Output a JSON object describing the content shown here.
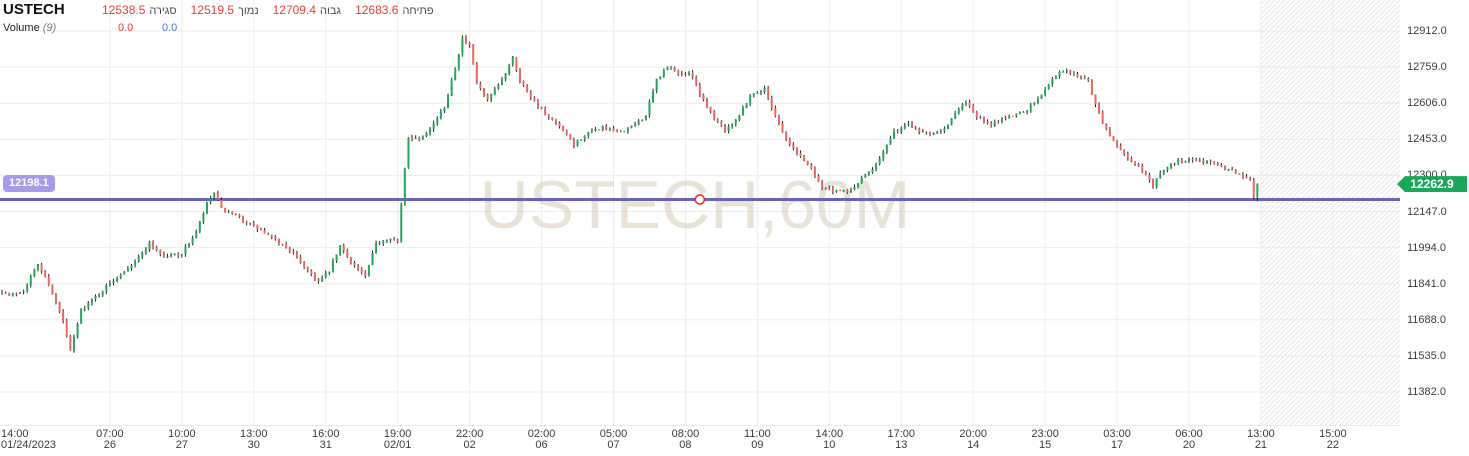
{
  "header": {
    "symbol": "USTECH",
    "fields": [
      {
        "label": "פתיחה",
        "value": "12683.6"
      },
      {
        "label": "גבוה",
        "value": "12709.4"
      },
      {
        "label": "נמוך",
        "value": "12519.5"
      },
      {
        "label": "סגירה",
        "value": "12538.5"
      }
    ],
    "volume": {
      "label": "Volume",
      "param": "(9)",
      "value_red": "0.0",
      "value_blue": "0.0"
    }
  },
  "chart_data": {
    "type": "candlestick",
    "title": "USTECH 60-minute candlestick chart",
    "watermark": "USTECH,60M",
    "colors": {
      "up": "#22a65a",
      "down": "#f0645f",
      "wick": "#1f1f1f",
      "grid": "#ececec",
      "hatch": "#e7e7e7",
      "price_line": "#6a62b4",
      "price_pill_bg": "#a79ae6",
      "last_tag_bg": "#1aa75a",
      "marker_ring": "#e23a2e",
      "watermark_color": "rgba(214,204,180,0.55)"
    },
    "y_axis": {
      "ticks": [
        12912.0,
        12759.0,
        12606.0,
        12453.0,
        12300.0,
        12147.0,
        11994.0,
        11841.0,
        11688.0,
        11535.0,
        11382.0
      ],
      "price_top": 13043.4,
      "price_bottom": 11242.2,
      "tick_step": 153.0
    },
    "x_axis": {
      "bars_total": 350,
      "future_start_bar": 350,
      "labels": [
        {
          "bar": 2,
          "time": "14:00",
          "date": "01/24/2023",
          "grid": false
        },
        {
          "bar": 30,
          "time": "07:00",
          "date": "26",
          "grid": true
        },
        {
          "bar": 50,
          "time": "10:00",
          "date": "27",
          "grid": true
        },
        {
          "bar": 70,
          "time": "13:00",
          "date": "30",
          "grid": true
        },
        {
          "bar": 90,
          "time": "16:00",
          "date": "31",
          "grid": true
        },
        {
          "bar": 110,
          "time": "19:00",
          "date": "02/01",
          "grid": true
        },
        {
          "bar": 130,
          "time": "22:00",
          "date": "02",
          "grid": true
        },
        {
          "bar": 150,
          "time": "02:00",
          "date": "06",
          "grid": true
        },
        {
          "bar": 170,
          "time": "05:00",
          "date": "07",
          "grid": true
        },
        {
          "bar": 190,
          "time": "08:00",
          "date": "08",
          "grid": true
        },
        {
          "bar": 210,
          "time": "11:00",
          "date": "09",
          "grid": true
        },
        {
          "bar": 230,
          "time": "14:00",
          "date": "10",
          "grid": true
        },
        {
          "bar": 250,
          "time": "17:00",
          "date": "13",
          "grid": true
        },
        {
          "bar": 270,
          "time": "20:00",
          "date": "14",
          "grid": true
        },
        {
          "bar": 290,
          "time": "23:00",
          "date": "15",
          "grid": true
        },
        {
          "bar": 310,
          "time": "03:00",
          "date": "17",
          "grid": true
        },
        {
          "bar": 330,
          "time": "06:00",
          "date": "20",
          "grid": true
        },
        {
          "bar": 350,
          "time": "13:00",
          "date": "21",
          "grid": true
        },
        {
          "bar": 370,
          "time": "15:00",
          "date": "22",
          "grid": true
        }
      ]
    },
    "price_line": {
      "price": 12198.1,
      "label": "12198.1"
    },
    "last_price": {
      "price": 12262.9,
      "label": "12262.9"
    },
    "marker": {
      "bar": 194,
      "price": 12198.1
    },
    "keypoints": [
      [
        0,
        11810
      ],
      [
        2,
        11790
      ],
      [
        6,
        11815
      ],
      [
        10,
        11925
      ],
      [
        13,
        11840
      ],
      [
        17,
        11680
      ],
      [
        19,
        11555
      ],
      [
        22,
        11730
      ],
      [
        27,
        11800
      ],
      [
        33,
        11885
      ],
      [
        38,
        11950
      ],
      [
        41,
        12015
      ],
      [
        45,
        11955
      ],
      [
        50,
        11970
      ],
      [
        54,
        12060
      ],
      [
        57,
        12180
      ],
      [
        59,
        12225
      ],
      [
        61,
        12155
      ],
      [
        66,
        12120
      ],
      [
        71,
        12075
      ],
      [
        76,
        12025
      ],
      [
        80,
        11985
      ],
      [
        84,
        11915
      ],
      [
        88,
        11850
      ],
      [
        91,
        11895
      ],
      [
        94,
        12000
      ],
      [
        97,
        11935
      ],
      [
        101,
        11870
      ],
      [
        104,
        12010
      ],
      [
        108,
        12040
      ],
      [
        110,
        12015
      ],
      [
        112,
        12330
      ],
      [
        113,
        12465
      ],
      [
        116,
        12455
      ],
      [
        120,
        12520
      ],
      [
        123,
        12590
      ],
      [
        126,
        12760
      ],
      [
        128,
        12880
      ],
      [
        130,
        12845
      ],
      [
        132,
        12690
      ],
      [
        135,
        12615
      ],
      [
        139,
        12705
      ],
      [
        142,
        12805
      ],
      [
        144,
        12700
      ],
      [
        148,
        12615
      ],
      [
        151,
        12555
      ],
      [
        155,
        12505
      ],
      [
        159,
        12430
      ],
      [
        162,
        12470
      ],
      [
        167,
        12505
      ],
      [
        171,
        12480
      ],
      [
        175,
        12505
      ],
      [
        179,
        12555
      ],
      [
        182,
        12705
      ],
      [
        185,
        12760
      ],
      [
        188,
        12735
      ],
      [
        192,
        12725
      ],
      [
        194,
        12645
      ],
      [
        198,
        12545
      ],
      [
        201,
        12495
      ],
      [
        205,
        12555
      ],
      [
        208,
        12640
      ],
      [
        212,
        12665
      ],
      [
        215,
        12555
      ],
      [
        218,
        12450
      ],
      [
        221,
        12395
      ],
      [
        225,
        12330
      ],
      [
        228,
        12250
      ],
      [
        232,
        12230
      ],
      [
        236,
        12235
      ],
      [
        238,
        12270
      ],
      [
        242,
        12330
      ],
      [
        245,
        12400
      ],
      [
        248,
        12480
      ],
      [
        252,
        12520
      ],
      [
        255,
        12490
      ],
      [
        258,
        12480
      ],
      [
        262,
        12500
      ],
      [
        265,
        12560
      ],
      [
        268,
        12615
      ],
      [
        271,
        12550
      ],
      [
        275,
        12510
      ],
      [
        278,
        12540
      ],
      [
        281,
        12555
      ],
      [
        285,
        12580
      ],
      [
        289,
        12640
      ],
      [
        292,
        12715
      ],
      [
        295,
        12745
      ],
      [
        298,
        12730
      ],
      [
        302,
        12700
      ],
      [
        304,
        12600
      ],
      [
        307,
        12490
      ],
      [
        310,
        12425
      ],
      [
        314,
        12360
      ],
      [
        317,
        12320
      ],
      [
        320,
        12255
      ],
      [
        323,
        12330
      ],
      [
        327,
        12360
      ],
      [
        330,
        12370
      ],
      [
        334,
        12360
      ],
      [
        337,
        12350
      ],
      [
        340,
        12330
      ],
      [
        344,
        12305
      ],
      [
        347,
        12285
      ],
      [
        348,
        12205
      ],
      [
        349,
        12262.9
      ]
    ]
  }
}
